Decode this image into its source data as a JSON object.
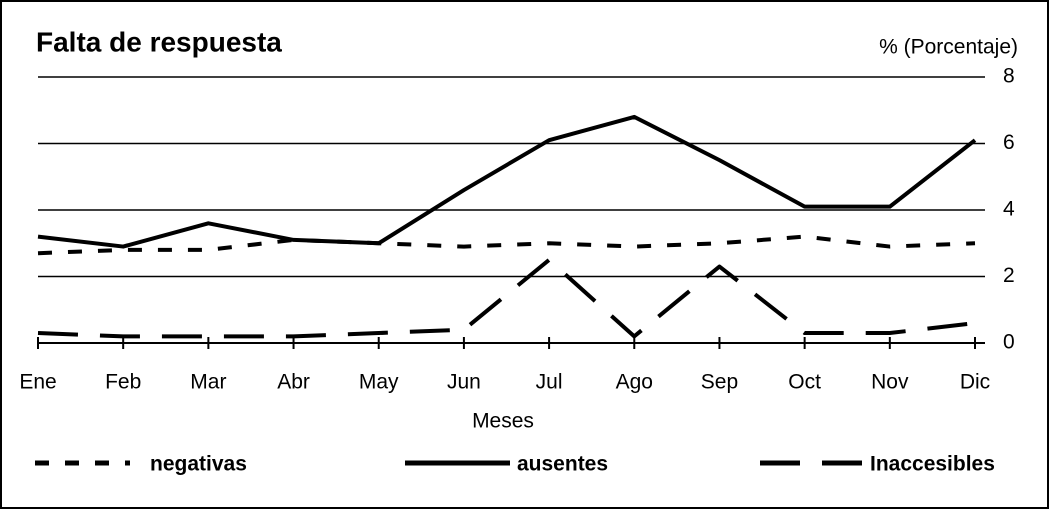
{
  "chart_data": {
    "type": "line",
    "title": "Falta de respuesta",
    "y_label": "% (Porcentaje)",
    "x_label": "Meses",
    "categories": [
      "Ene",
      "Feb",
      "Mar",
      "Abr",
      "May",
      "Jun",
      "Jul",
      "Ago",
      "Sep",
      "Oct",
      "Nov",
      "Dic"
    ],
    "series": [
      {
        "name": "negativas",
        "color": "#000000",
        "style": "short-dash",
        "values": [
          2.7,
          2.8,
          2.8,
          3.1,
          3.0,
          2.9,
          3.0,
          2.9,
          3.0,
          3.2,
          2.9,
          3.0
        ]
      },
      {
        "name": "ausentes",
        "color": "#000000",
        "style": "solid",
        "values": [
          3.2,
          2.9,
          3.6,
          3.1,
          3.0,
          4.6,
          6.1,
          6.8,
          5.5,
          4.1,
          4.1,
          6.1
        ]
      },
      {
        "name": "Inaccesibles",
        "color": "#000000",
        "style": "long-dash",
        "values": [
          0.3,
          0.2,
          0.2,
          0.2,
          0.3,
          0.4,
          2.5,
          0.2,
          2.3,
          0.3,
          0.3,
          0.6
        ]
      }
    ],
    "ylim": [
      0,
      8
    ],
    "yticks": [
      0,
      2,
      4,
      6,
      8
    ],
    "grid": true,
    "y_axis_side": "right",
    "legend": "bottom"
  }
}
